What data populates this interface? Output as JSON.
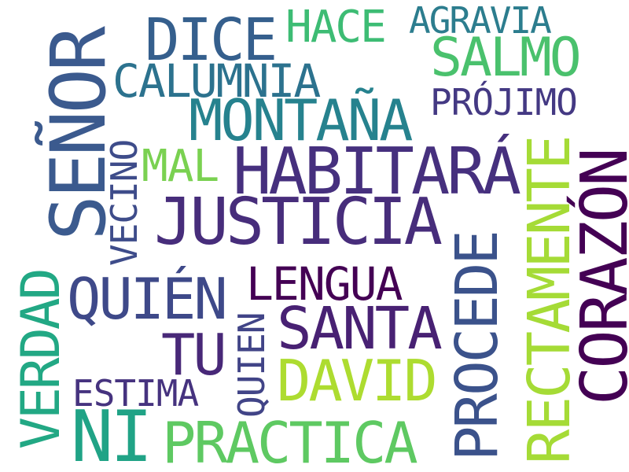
{
  "words": [
    {
      "text": "SEÑOR",
      "color": "#3b5a8e"
    },
    {
      "text": "DICE",
      "color": "#355f8d"
    },
    {
      "text": "HACE",
      "color": "#3dbc74"
    },
    {
      "text": "AGRAVIA",
      "color": "#2c7d8e"
    },
    {
      "text": "SALMO",
      "color": "#4ac16d"
    },
    {
      "text": "CALUMNIA",
      "color": "#2c728e"
    },
    {
      "text": "PRÓJIMO",
      "color": "#443983"
    },
    {
      "text": "MONTAÑA",
      "color": "#26828e"
    },
    {
      "text": "VECINO",
      "color": "#3e4c8a"
    },
    {
      "text": "MAL",
      "color": "#7ad151"
    },
    {
      "text": "HABITARÁ",
      "color": "#46307e"
    },
    {
      "text": "RECTAMENTE",
      "color": "#a5db36"
    },
    {
      "text": "CORAZÓN",
      "color": "#440154"
    },
    {
      "text": "JUSTICIA",
      "color": "#472d7b"
    },
    {
      "text": "PROCEDE",
      "color": "#3b528b"
    },
    {
      "text": "VERDAD",
      "color": "#22a884"
    },
    {
      "text": "QUIÉN",
      "color": "#3e4989"
    },
    {
      "text": "LENGUA",
      "color": "#440154"
    },
    {
      "text": "SANTA",
      "color": "#482173"
    },
    {
      "text": "TU",
      "color": "#482878"
    },
    {
      "text": "QUIEN",
      "color": "#414487"
    },
    {
      "text": "DAVID",
      "color": "#addc30"
    },
    {
      "text": "ESTIMA",
      "color": "#46337f"
    },
    {
      "text": "NI",
      "color": "#20a386"
    },
    {
      "text": "PRACTICA",
      "color": "#5ec962"
    }
  ]
}
